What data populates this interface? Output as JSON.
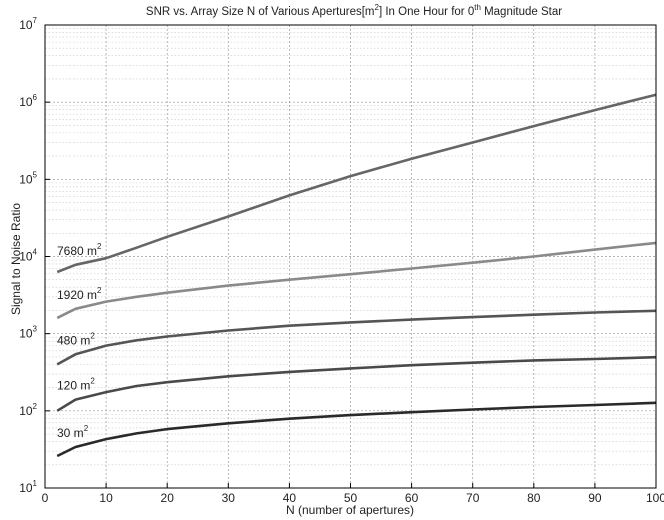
{
  "chart_data": {
    "type": "line",
    "title": {
      "pre": "SNR vs.  Array Size N of Various Apertures[m",
      "sup1": "2",
      "mid": "] In One Hour for 0",
      "sup2": "th",
      "post": " Magnitude Star"
    },
    "xlabel": "N (number of apertures)",
    "ylabel": "Signal to Noise Ratio",
    "xlim": [
      0,
      100
    ],
    "ylim": [
      10,
      10000000
    ],
    "yscale": "log",
    "grid": true,
    "x_ticks": [
      0,
      10,
      20,
      30,
      40,
      50,
      60,
      70,
      80,
      90,
      100
    ],
    "y_ticks": [
      {
        "base": "10",
        "exp": "1",
        "value": 10
      },
      {
        "base": "10",
        "exp": "2",
        "value": 100
      },
      {
        "base": "10",
        "exp": "3",
        "value": 1000
      },
      {
        "base": "10",
        "exp": "4",
        "value": 10000
      },
      {
        "base": "10",
        "exp": "5",
        "value": 100000
      },
      {
        "base": "10",
        "exp": "6",
        "value": 1000000
      },
      {
        "base": "10",
        "exp": "7",
        "value": 10000000
      }
    ],
    "series": [
      {
        "name": "30 m",
        "unit_exp": "2",
        "color": "#2a2a2a",
        "x": [
          2,
          5,
          10,
          15,
          20,
          30,
          40,
          50,
          60,
          70,
          80,
          90,
          100
        ],
        "y": [
          26,
          34,
          43,
          51,
          58,
          69,
          79,
          88,
          96,
          104,
          112,
          119,
          127
        ]
      },
      {
        "name": "120 m",
        "unit_exp": "2",
        "color": "#4a4a4a",
        "x": [
          2,
          5,
          10,
          15,
          20,
          30,
          40,
          50,
          60,
          70,
          80,
          90,
          100
        ],
        "y": [
          100,
          140,
          175,
          210,
          235,
          280,
          320,
          355,
          390,
          420,
          450,
          470,
          495
        ]
      },
      {
        "name": "480 m",
        "unit_exp": "2",
        "color": "#555555",
        "x": [
          2,
          5,
          10,
          15,
          20,
          30,
          40,
          50,
          60,
          70,
          80,
          90,
          100
        ],
        "y": [
          400,
          540,
          700,
          820,
          920,
          1100,
          1270,
          1400,
          1520,
          1640,
          1760,
          1880,
          1980
        ]
      },
      {
        "name": "1920 m",
        "unit_exp": "2",
        "color": "#8a8a8a",
        "x": [
          2,
          5,
          10,
          15,
          20,
          30,
          40,
          50,
          60,
          70,
          80,
          90,
          100
        ],
        "y": [
          1600,
          2100,
          2600,
          3000,
          3400,
          4200,
          5000,
          5900,
          7000,
          8300,
          10000,
          12300,
          15000
        ]
      },
      {
        "name": "7680 m",
        "unit_exp": "2",
        "color": "#666666",
        "x": [
          2,
          5,
          10,
          15,
          20,
          30,
          40,
          50,
          60,
          70,
          80,
          90,
          100
        ],
        "y": [
          6300,
          7800,
          9500,
          13000,
          18000,
          33000,
          62000,
          110000,
          185000,
          300000,
          490000,
          790000,
          1250000
        ]
      }
    ],
    "series_label_positions": [
      "left-of-curve"
    ]
  }
}
